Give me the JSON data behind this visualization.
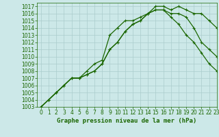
{
  "title": "Graphe pression niveau de la mer (hPa)",
  "bg_color": "#cce8e8",
  "grid_color": "#aacccc",
  "line_color": "#1a6600",
  "xlim": [
    -0.5,
    23
  ],
  "ylim": [
    1003,
    1017.5
  ],
  "yticks": [
    1003,
    1004,
    1005,
    1006,
    1007,
    1008,
    1009,
    1010,
    1011,
    1012,
    1013,
    1014,
    1015,
    1016,
    1017
  ],
  "xticks": [
    0,
    1,
    2,
    3,
    4,
    5,
    6,
    7,
    8,
    9,
    10,
    11,
    12,
    13,
    14,
    15,
    16,
    17,
    18,
    19,
    20,
    21,
    22,
    23
  ],
  "series": [
    [
      1003,
      1004,
      1005,
      1006,
      1007,
      1007,
      1008,
      1009,
      1009.5,
      1013,
      1014,
      1015,
      1015,
      1015.5,
      1016,
      1017,
      1017,
      1016.5,
      1017,
      1016.5,
      1016,
      1016,
      1015,
      1014
    ],
    [
      1003,
      1004,
      1005,
      1006,
      1007,
      1007,
      1007.5,
      1008,
      1009,
      1011,
      1012,
      1013.5,
      1014.5,
      1015,
      1016,
      1016.5,
      1016.5,
      1016,
      1016,
      1015.5,
      1014,
      1012,
      1011,
      1010
    ],
    [
      1003,
      1004,
      1005,
      1006,
      1007,
      1007,
      1007.5,
      1008,
      1009,
      1011,
      1012,
      1013.5,
      1014.5,
      1015,
      1016,
      1016.5,
      1016.5,
      1015.5,
      1014.5,
      1013,
      1012,
      1010.5,
      1009,
      1008
    ]
  ],
  "tick_fontsize": 5.5,
  "xlabel_fontsize": 6.5,
  "linewidth": 0.9,
  "markersize": 2.5
}
